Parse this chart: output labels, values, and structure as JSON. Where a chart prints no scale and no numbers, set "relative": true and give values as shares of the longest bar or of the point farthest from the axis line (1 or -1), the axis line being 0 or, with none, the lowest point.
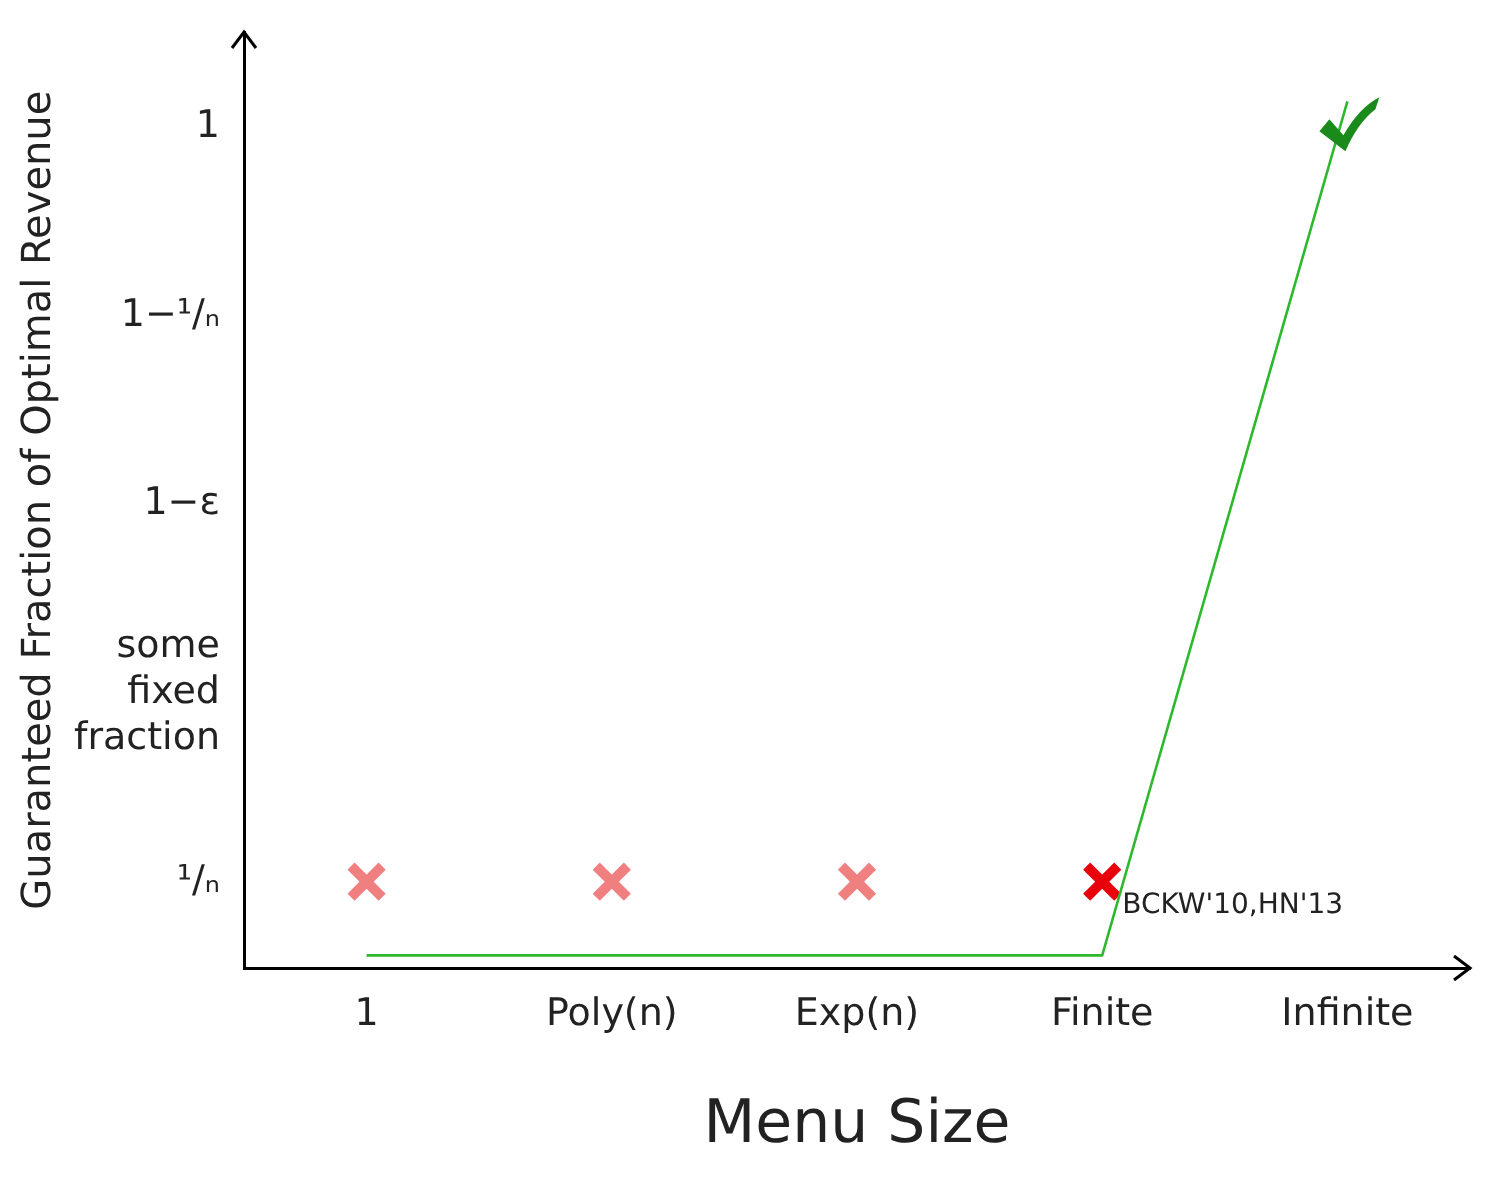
{
  "chart_data": {
    "type": "line",
    "xlabel": "Menu Size",
    "ylabel": "Guaranteed Fraction of Optimal Revenue",
    "categories": [
      "1",
      "Poly(n)",
      "Exp(n)",
      "Finite",
      "Infinite"
    ],
    "relative": true,
    "grid": false,
    "legend": false,
    "series": [
      {
        "color": "#2db82d",
        "values": [
          0.015,
          0.015,
          0.015,
          0.015,
          1
        ],
        "marker": "none"
      },
      {
        "type": "scatter",
        "color": "#f08080",
        "x": [
          "1",
          "Poly(n)",
          "Exp(n)"
        ],
        "values": [
          0.1,
          0.1,
          0.1
        ],
        "marker": "cross"
      },
      {
        "type": "scatter",
        "color": "#e8000b",
        "x": [
          "Finite"
        ],
        "values": [
          0.1
        ],
        "marker": "cross"
      },
      {
        "type": "scatter",
        "color": "#1a8a1a",
        "x": [
          "Infinite"
        ],
        "values": [
          0.97
        ]
      }
    ],
    "annotations": [
      {
        "text": "BCKW'10,HN'13",
        "x": "Finite",
        "y": 0.1
      },
      "¹/ₙ",
      "some fixed fraction",
      "1−ε",
      "1−¹/ₙ",
      "1"
    ]
  }
}
